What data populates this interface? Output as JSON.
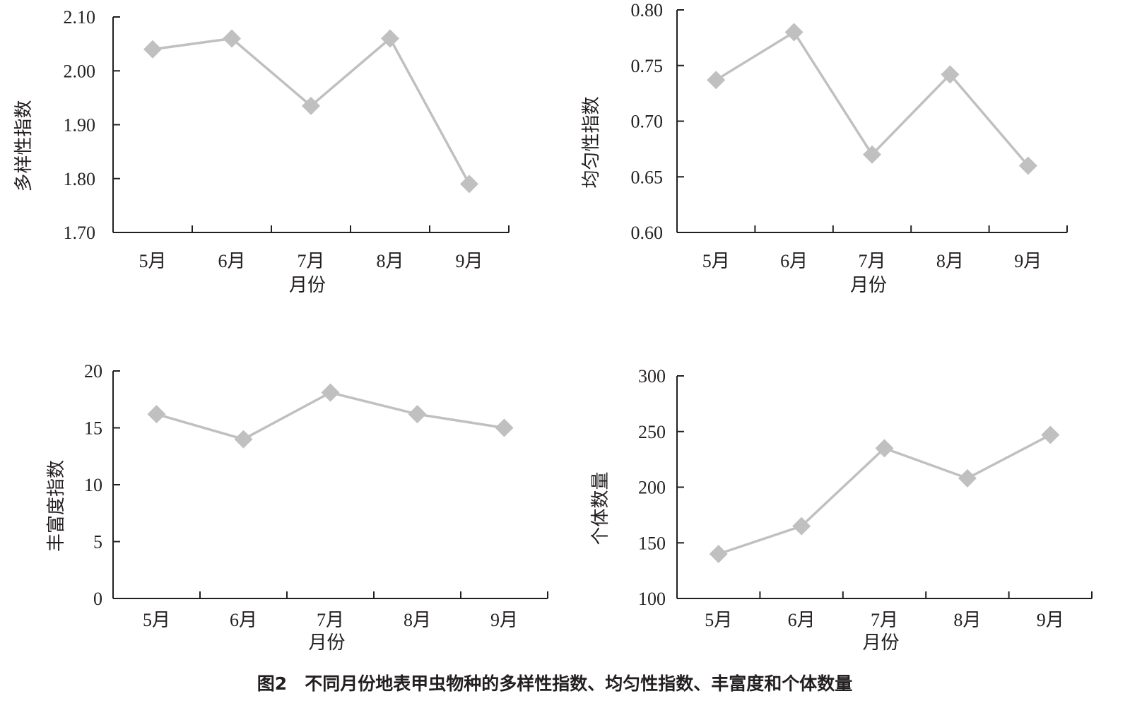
{
  "caption": "图2　不同月份地表甲虫物种的多样性指数、均匀性指数、丰富度和个体数量",
  "chart_data": [
    {
      "type": "line",
      "categories": [
        "5月",
        "6月",
        "7月",
        "8月",
        "9月"
      ],
      "values": [
        2.04,
        2.06,
        1.935,
        2.06,
        1.79
      ],
      "xlabel": "月份",
      "ylabel": "多样性指数",
      "ylim": [
        1.7,
        2.1
      ],
      "yticks": [
        "1.70",
        "1.80",
        "1.90",
        "2.00",
        "2.10"
      ],
      "grid": false,
      "color": "#c0c0c0"
    },
    {
      "type": "line",
      "categories": [
        "5月",
        "6月",
        "7月",
        "8月",
        "9月"
      ],
      "values": [
        0.737,
        0.78,
        0.67,
        0.742,
        0.66
      ],
      "xlabel": "月份",
      "ylabel": "均匀性指数",
      "ylim": [
        0.6,
        0.8
      ],
      "yticks": [
        "0.60",
        "0.65",
        "0.70",
        "0.75",
        "0.80"
      ],
      "grid": false,
      "color": "#c0c0c0"
    },
    {
      "type": "line",
      "categories": [
        "5月",
        "6月",
        "7月",
        "8月",
        "9月"
      ],
      "values": [
        16.2,
        14.0,
        18.1,
        16.2,
        15.0
      ],
      "xlabel": "月份",
      "ylabel": "丰富度指数",
      "ylim": [
        0,
        20
      ],
      "yticks": [
        "0",
        "5",
        "10",
        "15",
        "20"
      ],
      "grid": false,
      "color": "#c0c0c0"
    },
    {
      "type": "line",
      "categories": [
        "5月",
        "6月",
        "7月",
        "8月",
        "9月"
      ],
      "values": [
        140,
        165,
        235,
        208,
        247
      ],
      "xlabel": "月份",
      "ylabel": "个体数量",
      "ylim": [
        100,
        300
      ],
      "yticks": [
        "100",
        "150",
        "200",
        "250",
        "300"
      ],
      "grid": false,
      "color": "#c0c0c0"
    }
  ]
}
